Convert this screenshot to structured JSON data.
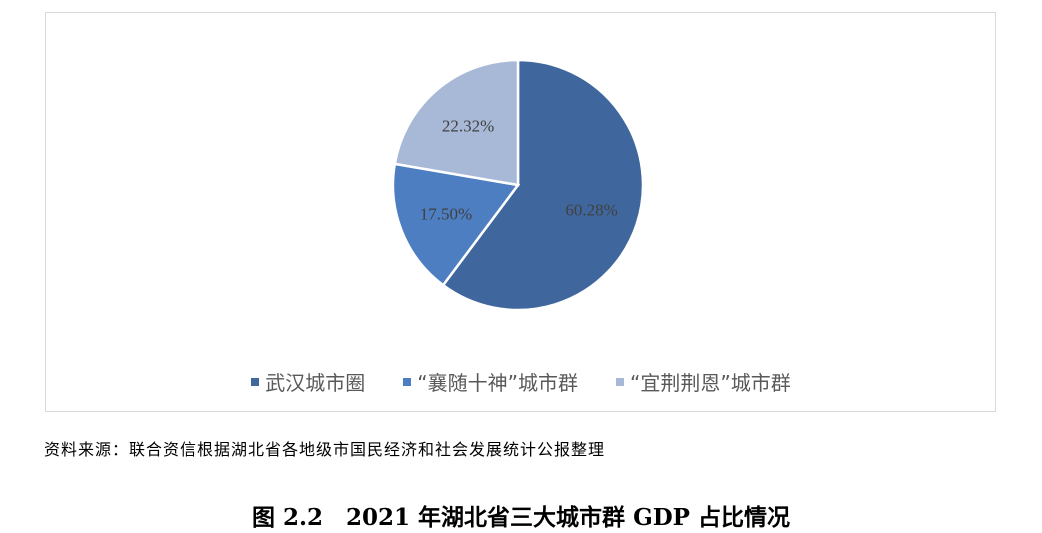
{
  "chart_data": {
    "type": "pie",
    "title": "",
    "categories": [
      "武汉城市圈",
      "“襄随十神”城市群",
      "“宜荆荆恩”城市群"
    ],
    "values": [
      60.28,
      17.5,
      22.32
    ],
    "labels": [
      "60.28%",
      "17.50%",
      "22.32%"
    ],
    "colors": [
      "#3F679D",
      "#4D7EC1",
      "#A8B9D8"
    ],
    "legend_position": "bottom"
  },
  "source": "资料来源：联合资信根据湖北省各地级市国民经济和社会发展统计公报整理",
  "caption": "图 2.2　2021 年湖北省三大城市群 GDP 占比情况"
}
